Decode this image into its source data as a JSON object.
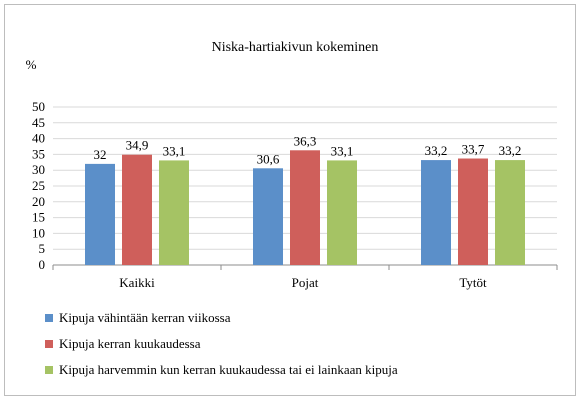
{
  "chart_data": {
    "type": "bar",
    "title": "Niska-hartiakivun kokeminen",
    "ylabel": "%",
    "xlabel": "",
    "ylim": [
      0,
      50
    ],
    "yticks": [
      0,
      5,
      10,
      15,
      20,
      25,
      30,
      35,
      40,
      45,
      50
    ],
    "grid": true,
    "legend_position": "bottom-left",
    "categories": [
      "Kaikki",
      "Pojat",
      "Tytöt"
    ],
    "series": [
      {
        "name": "Kipuja vähintään kerran viikossa",
        "color": "#5b8fc9",
        "values": [
          32,
          30.6,
          33.2
        ],
        "labels": [
          "32",
          "30,6",
          "33,2"
        ]
      },
      {
        "name": "Kipuja kerran kuukaudessa",
        "color": "#cf5f5b",
        "values": [
          34.9,
          36.3,
          33.7
        ],
        "labels": [
          "34,9",
          "36,3",
          "33,7"
        ]
      },
      {
        "name": "Kipuja harvemmin kun kerran kuukaudessa tai ei lainkaan kipuja",
        "color": "#a5c364",
        "values": [
          33.1,
          33.1,
          33.2
        ],
        "labels": [
          "33,1",
          "33,1",
          "33,2"
        ]
      }
    ]
  }
}
